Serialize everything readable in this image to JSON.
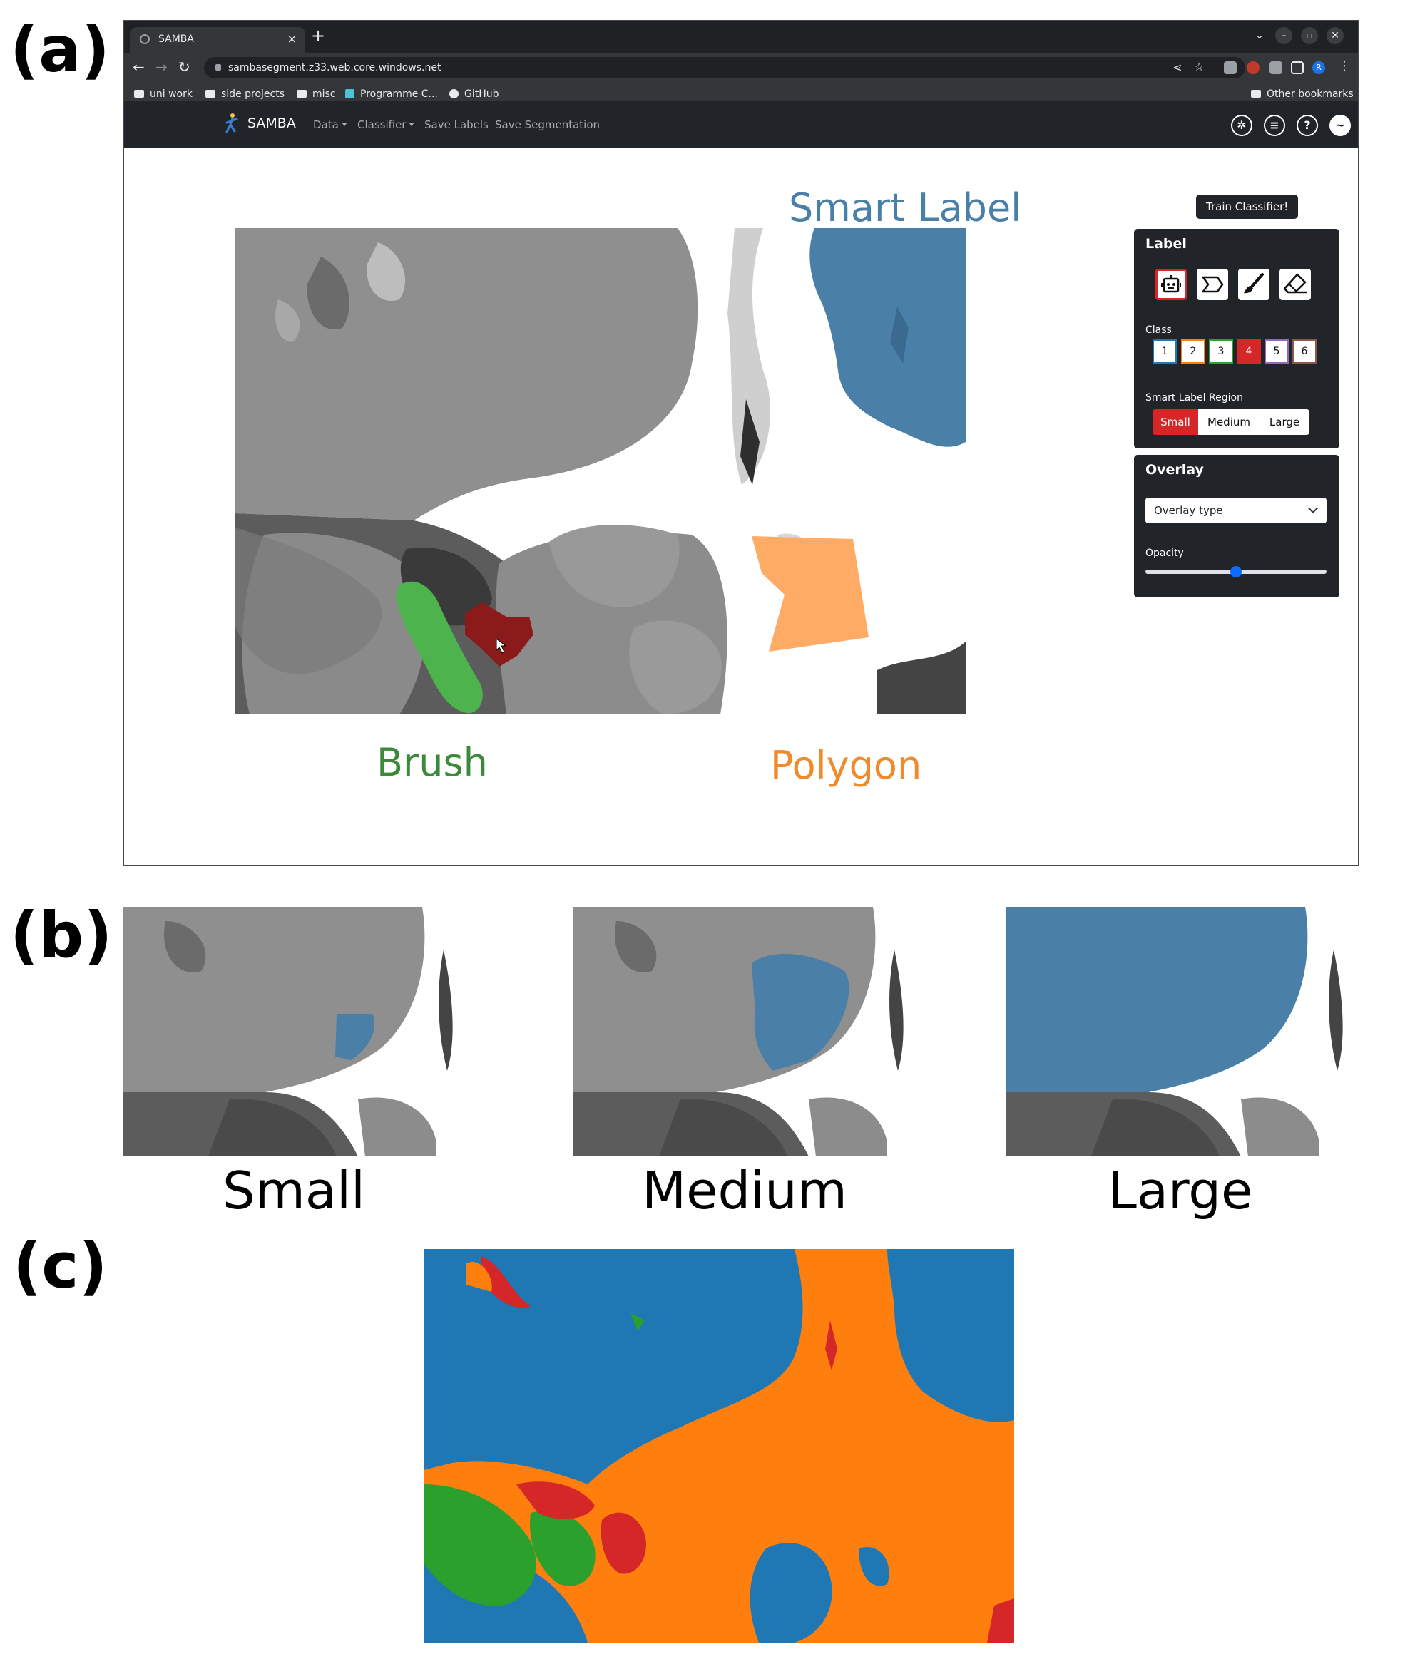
{
  "panels": {
    "a": "(a)",
    "b": "(b)",
    "c": "(c)"
  },
  "browser": {
    "tab_title": "SAMBA",
    "tab_close": "×",
    "new_tab": "+",
    "url": "sambasegment.z33.web.core.windows.net",
    "bookmarks": [
      "uni work",
      "side projects",
      "misc",
      "Programme C...",
      "GitHub"
    ],
    "other_bookmarks": "Other bookmarks",
    "profile_initial": "R"
  },
  "app": {
    "brand": "SAMBA",
    "nav": {
      "data": "Data",
      "classifier": "Classifier",
      "save_labels": "Save Labels",
      "save_segmentation": "Save Segmentation"
    },
    "icons": [
      "settings-icon",
      "document-icon",
      "help-icon",
      "theme-toggle-icon"
    ]
  },
  "annotations": {
    "smart_label": "Smart Label",
    "brush": "Brush",
    "polygon": "Polygon"
  },
  "sidebar": {
    "train_button": "Train Classifier!",
    "label_card": {
      "title": "Label",
      "tools": [
        "smart-label-tool-icon",
        "polygon-tool-icon",
        "brush-tool-icon",
        "eraser-tool-icon"
      ],
      "active_tool": 0,
      "class_label": "Class",
      "classes": [
        "1",
        "2",
        "3",
        "4",
        "5",
        "6"
      ],
      "class_colors": [
        "#1f77b4",
        "#ff7f0e",
        "#2ca02c",
        "#d62728",
        "#9467bd",
        "#8c564b"
      ],
      "active_class": 3,
      "region_label": "Smart Label Region",
      "regions": [
        "Small",
        "Medium",
        "Large"
      ],
      "active_region": 0
    },
    "overlay_card": {
      "title": "Overlay",
      "overlay_placeholder": "Overlay type",
      "opacity_label": "Opacity",
      "opacity": 0.5
    }
  },
  "colors": {
    "blue": "#1f77b4",
    "orange": "#ff7f0e",
    "green": "#2ca02c",
    "red": "#d62728",
    "label_blue": "#4a7fa8",
    "label_orange": "#ffab66",
    "label_green": "#4db34d",
    "label_red": "#8b1a1a",
    "smart_text": "#4a7fa8",
    "brush_text": "#3a8a3a",
    "polygon_text": "#f08a2a"
  },
  "captions_b": [
    "Small",
    "Medium",
    "Large"
  ]
}
